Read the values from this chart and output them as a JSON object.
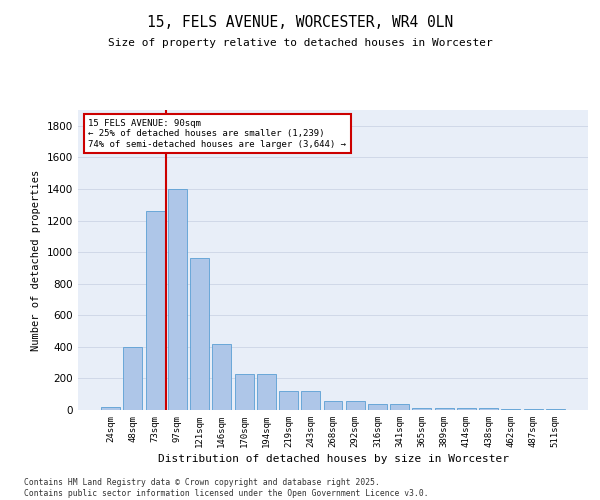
{
  "title": "15, FELS AVENUE, WORCESTER, WR4 0LN",
  "subtitle": "Size of property relative to detached houses in Worcester",
  "xlabel": "Distribution of detached houses by size in Worcester",
  "ylabel": "Number of detached properties",
  "bar_color": "#aec6e8",
  "bar_edge_color": "#5a9fd4",
  "grid_color": "#d0d8e8",
  "background_color": "#e8eef8",
  "annotation_box_color": "#cc0000",
  "vline_color": "#cc0000",
  "categories": [
    "24sqm",
    "48sqm",
    "73sqm",
    "97sqm",
    "121sqm",
    "146sqm",
    "170sqm",
    "194sqm",
    "219sqm",
    "243sqm",
    "268sqm",
    "292sqm",
    "316sqm",
    "341sqm",
    "365sqm",
    "389sqm",
    "414sqm",
    "438sqm",
    "462sqm",
    "487sqm",
    "511sqm"
  ],
  "values": [
    20,
    400,
    1260,
    1400,
    960,
    415,
    230,
    230,
    120,
    120,
    60,
    60,
    40,
    40,
    15,
    15,
    10,
    10,
    5,
    5,
    5
  ],
  "ylim": [
    0,
    1900
  ],
  "yticks": [
    0,
    200,
    400,
    600,
    800,
    1000,
    1200,
    1400,
    1600,
    1800
  ],
  "property_bin_index": 3,
  "annotation_text": "15 FELS AVENUE: 90sqm\n← 25% of detached houses are smaller (1,239)\n74% of semi-detached houses are larger (3,644) →",
  "footer_line1": "Contains HM Land Registry data © Crown copyright and database right 2025.",
  "footer_line2": "Contains public sector information licensed under the Open Government Licence v3.0."
}
